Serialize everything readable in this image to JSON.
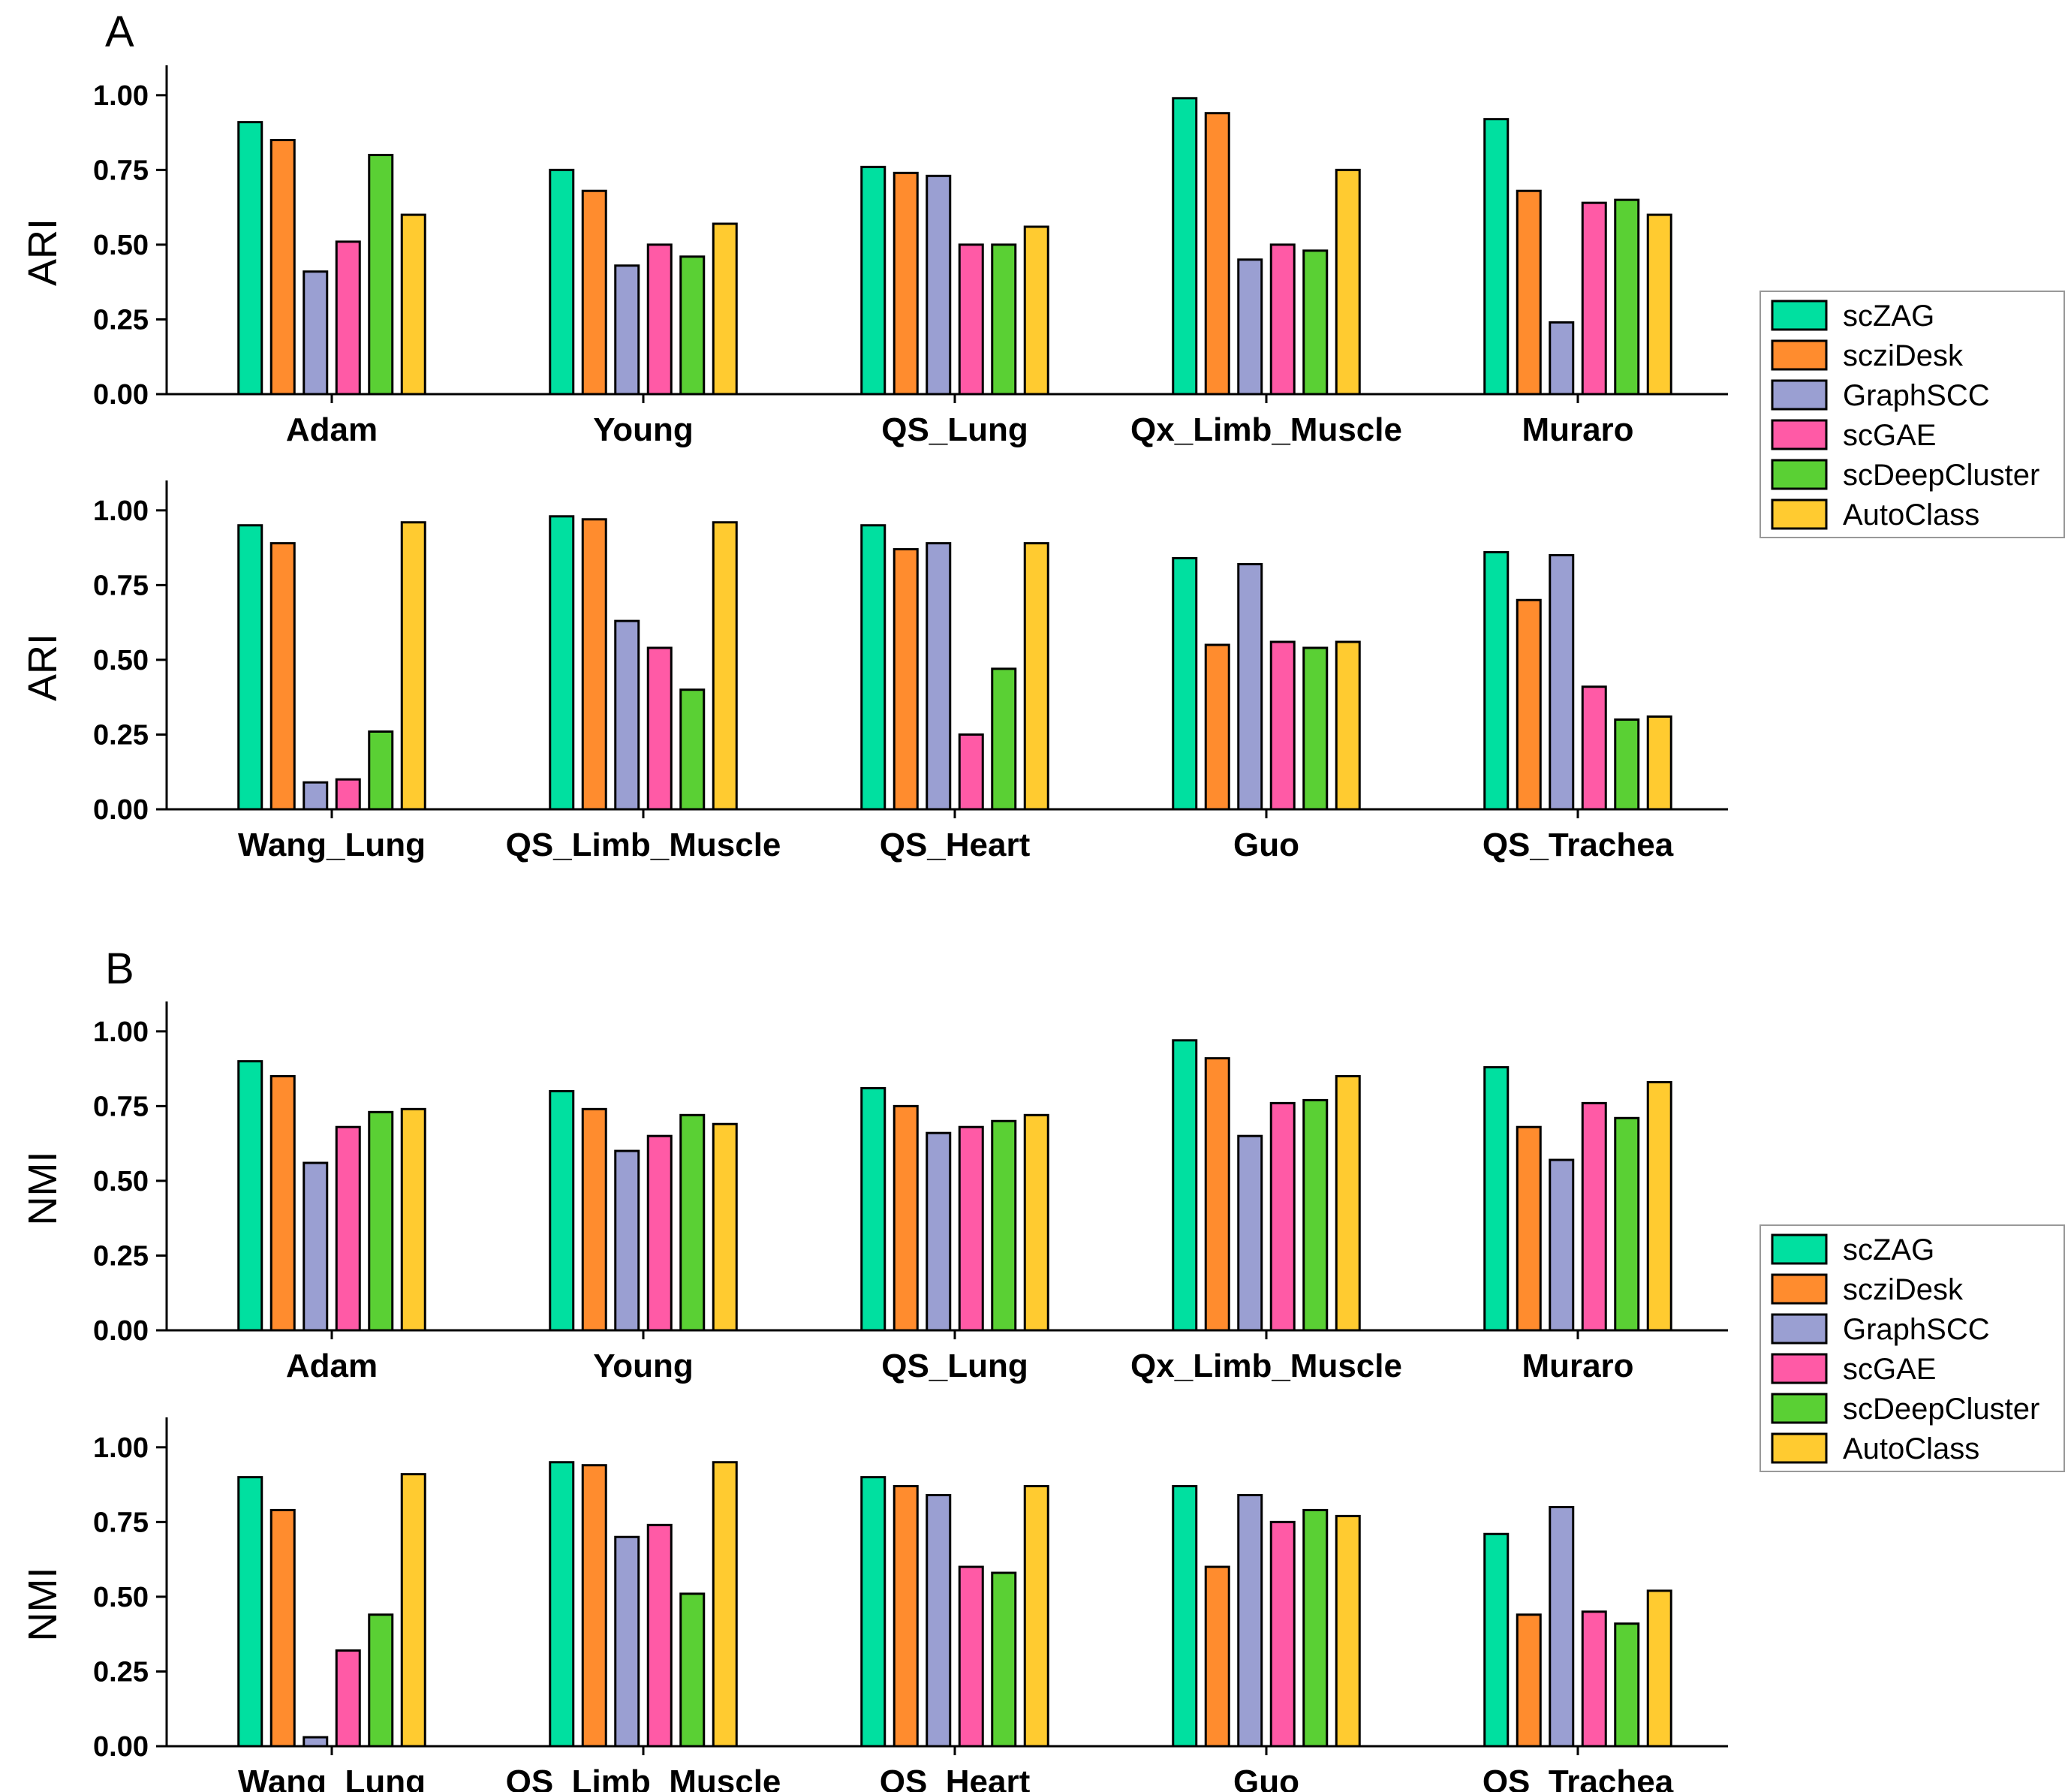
{
  "panels": [
    {
      "letter": "A"
    },
    {
      "letter": "B"
    }
  ],
  "legend": [
    "scZAG",
    "scziDesk",
    "GraphSCC",
    "scGAE",
    "scDeepCluster",
    "AutoClass"
  ],
  "colors": [
    "#00e0a0",
    "#ff8c2e",
    "#9a9fd2",
    "#ff5aa6",
    "#5ad034",
    "#ffcb30"
  ],
  "chart_data": [
    {
      "type": "bar",
      "panel": "A",
      "ylabel": "ARI",
      "ylim": [
        0,
        1.1
      ],
      "yticks": [
        "0.00",
        "0.25",
        "0.50",
        "0.75",
        "1.00"
      ],
      "categories": [
        "Adam",
        "Young",
        "QS_Lung",
        "Qx_Limb_Muscle",
        "Muraro"
      ],
      "series": [
        {
          "name": "scZAG",
          "values": [
            0.91,
            0.75,
            0.76,
            0.99,
            0.92
          ]
        },
        {
          "name": "scziDesk",
          "values": [
            0.85,
            0.68,
            0.74,
            0.94,
            0.68
          ]
        },
        {
          "name": "GraphSCC",
          "values": [
            0.41,
            0.43,
            0.73,
            0.45,
            0.24
          ]
        },
        {
          "name": "scGAE",
          "values": [
            0.51,
            0.5,
            0.5,
            0.5,
            0.64
          ]
        },
        {
          "name": "scDeepCluster",
          "values": [
            0.8,
            0.46,
            0.5,
            0.48,
            0.65
          ]
        },
        {
          "name": "AutoClass",
          "values": [
            0.6,
            0.57,
            0.56,
            0.75,
            0.6
          ]
        }
      ]
    },
    {
      "type": "bar",
      "panel": "A",
      "ylabel": "ARI",
      "ylim": [
        0,
        1.1
      ],
      "yticks": [
        "0.00",
        "0.25",
        "0.50",
        "0.75",
        "1.00"
      ],
      "categories": [
        "Wang_Lung",
        "QS_Limb_Muscle",
        "QS_Heart",
        "Guo",
        "QS_Trachea"
      ],
      "series": [
        {
          "name": "scZAG",
          "values": [
            0.95,
            0.98,
            0.95,
            0.84,
            0.86
          ]
        },
        {
          "name": "scziDesk",
          "values": [
            0.89,
            0.97,
            0.87,
            0.55,
            0.7
          ]
        },
        {
          "name": "GraphSCC",
          "values": [
            0.09,
            0.63,
            0.89,
            0.82,
            0.85
          ]
        },
        {
          "name": "scGAE",
          "values": [
            0.1,
            0.54,
            0.25,
            0.56,
            0.41
          ]
        },
        {
          "name": "scDeepCluster",
          "values": [
            0.26,
            0.4,
            0.47,
            0.54,
            0.3
          ]
        },
        {
          "name": "AutoClass",
          "values": [
            0.96,
            0.96,
            0.89,
            0.56,
            0.31
          ]
        }
      ]
    },
    {
      "type": "bar",
      "panel": "B",
      "ylabel": "NMI",
      "ylim": [
        0,
        1.1
      ],
      "yticks": [
        "0.00",
        "0.25",
        "0.50",
        "0.75",
        "1.00"
      ],
      "categories": [
        "Adam",
        "Young",
        "QS_Lung",
        "Qx_Limb_Muscle",
        "Muraro"
      ],
      "series": [
        {
          "name": "scZAG",
          "values": [
            0.9,
            0.8,
            0.81,
            0.97,
            0.88
          ]
        },
        {
          "name": "scziDesk",
          "values": [
            0.85,
            0.74,
            0.75,
            0.91,
            0.68
          ]
        },
        {
          "name": "GraphSCC",
          "values": [
            0.56,
            0.6,
            0.66,
            0.65,
            0.57
          ]
        },
        {
          "name": "scGAE",
          "values": [
            0.68,
            0.65,
            0.68,
            0.76,
            0.76
          ]
        },
        {
          "name": "scDeepCluster",
          "values": [
            0.73,
            0.72,
            0.7,
            0.77,
            0.71
          ]
        },
        {
          "name": "AutoClass",
          "values": [
            0.74,
            0.69,
            0.72,
            0.85,
            0.83
          ]
        }
      ]
    },
    {
      "type": "bar",
      "panel": "B",
      "ylabel": "NMI",
      "ylim": [
        0,
        1.1
      ],
      "yticks": [
        "0.00",
        "0.25",
        "0.50",
        "0.75",
        "1.00"
      ],
      "categories": [
        "Wang_Lung",
        "QS_Limb_Muscle",
        "QS_Heart",
        "Guo",
        "QS_Trachea"
      ],
      "series": [
        {
          "name": "scZAG",
          "values": [
            0.9,
            0.95,
            0.9,
            0.87,
            0.71
          ]
        },
        {
          "name": "scziDesk",
          "values": [
            0.79,
            0.94,
            0.87,
            0.6,
            0.44
          ]
        },
        {
          "name": "GraphSCC",
          "values": [
            0.03,
            0.7,
            0.84,
            0.84,
            0.8
          ]
        },
        {
          "name": "scGAE",
          "values": [
            0.32,
            0.74,
            0.6,
            0.75,
            0.45
          ]
        },
        {
          "name": "scDeepCluster",
          "values": [
            0.44,
            0.51,
            0.58,
            0.79,
            0.41
          ]
        },
        {
          "name": "AutoClass",
          "values": [
            0.91,
            0.95,
            0.87,
            0.77,
            0.52
          ]
        }
      ]
    }
  ]
}
